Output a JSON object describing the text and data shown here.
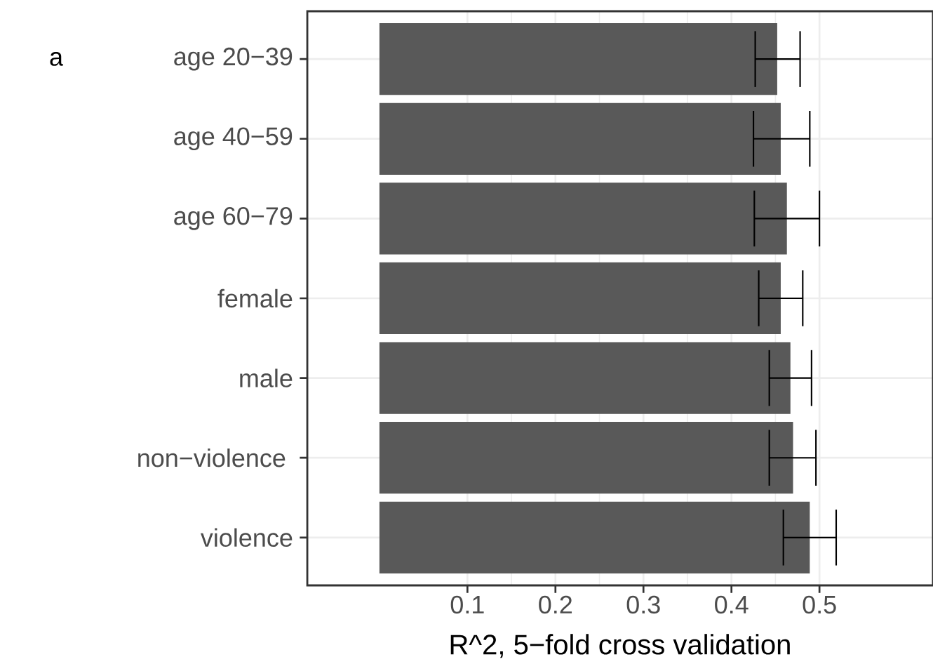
{
  "chart_data": {
    "type": "bar",
    "orientation": "horizontal",
    "xlabel": "R^2, 5−fold cross validation",
    "categories": [
      "age 20−39",
      "age 40−59",
      "age 60−79",
      "female",
      "male",
      "non−violence ",
      "violence"
    ],
    "values": [
      0.452,
      0.456,
      0.463,
      0.456,
      0.467,
      0.47,
      0.489
    ],
    "errors": [
      [
        0.427,
        0.478
      ],
      [
        0.425,
        0.489
      ],
      [
        0.426,
        0.5
      ],
      [
        0.431,
        0.481
      ],
      [
        0.443,
        0.491
      ],
      [
        0.443,
        0.496
      ],
      [
        0.459,
        0.519
      ]
    ],
    "color": "#595959",
    "xlim": [
      -0.082,
      0.629
    ],
    "xticks": [
      0.1,
      0.2,
      0.3,
      0.4,
      0.5
    ],
    "grid": true,
    "annotations": [
      "a"
    ]
  }
}
